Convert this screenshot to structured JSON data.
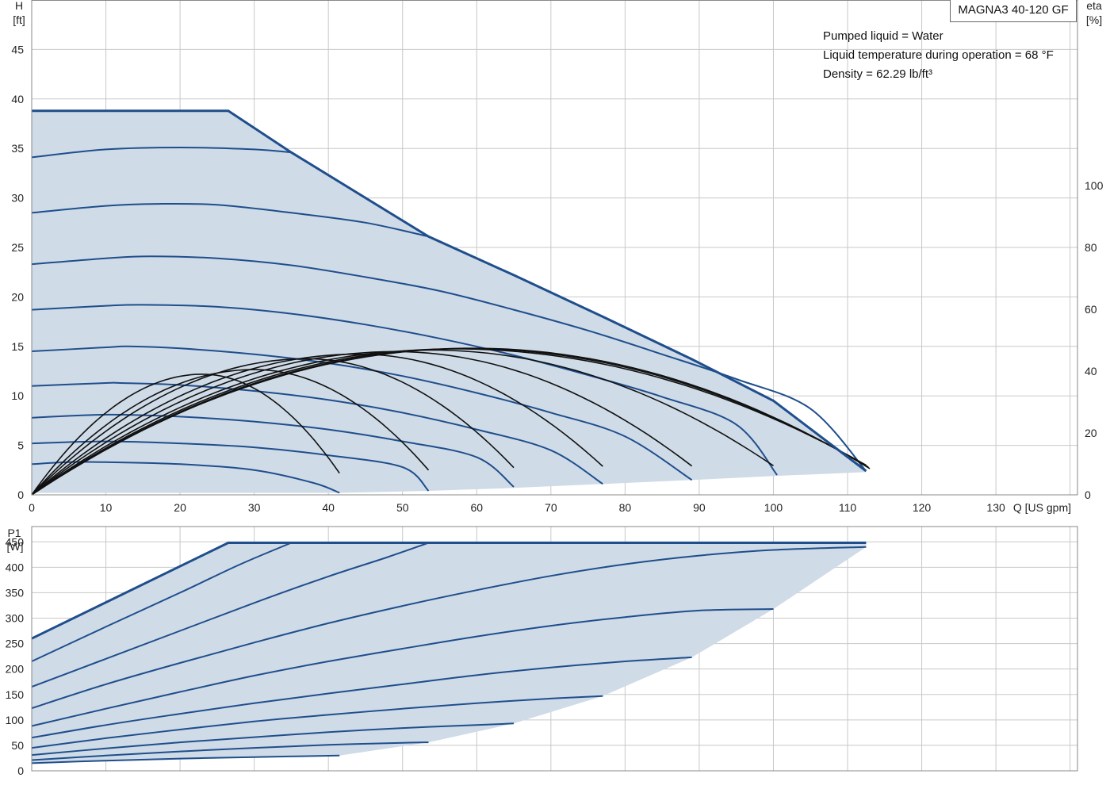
{
  "model": "MAGNA3 40-120 GF",
  "conditions": [
    "Pumped liquid = Water",
    "Liquid temperature during operation = 68 °F",
    "Density = 62.29 lb/ft³"
  ],
  "colors": {
    "curve": "#1f4e8c",
    "fill": "#cfdbe7",
    "efficiency": "#111111",
    "grid": "#c8c8c8"
  },
  "chart_data": [
    {
      "type": "line",
      "name": "head",
      "xlabel": "Q [US gpm]",
      "ylabel_top": "H",
      "ylabel_unit": "[ft]",
      "y2label_top": "eta",
      "y2label_unit": "[%]",
      "xlim": [
        0,
        141
      ],
      "ylim": [
        0,
        50
      ],
      "y2lim": [
        0,
        160
      ],
      "x_ticks": [
        0,
        10,
        20,
        30,
        40,
        50,
        60,
        70,
        80,
        90,
        100,
        110,
        120,
        130
      ],
      "y_ticks": [
        0,
        5,
        10,
        15,
        20,
        25,
        30,
        35,
        40,
        45
      ],
      "y2_ticks": [
        0,
        20,
        40,
        60,
        80,
        100
      ],
      "grid": true,
      "envelope": [
        [
          0,
          38.8
        ],
        [
          26.5,
          38.8
        ],
        [
          35,
          34.6
        ],
        [
          53.5,
          26.1
        ],
        [
          65,
          22.2
        ],
        [
          77,
          18.0
        ],
        [
          89,
          13.7
        ],
        [
          100,
          9.5
        ],
        [
          112.5,
          2.4
        ],
        [
          112.5,
          2.3
        ],
        [
          100,
          1.9
        ],
        [
          89,
          1.5
        ],
        [
          77,
          1.1
        ],
        [
          65,
          0.7
        ],
        [
          53.5,
          0.4
        ],
        [
          41.5,
          0.2
        ],
        [
          0,
          0.2
        ]
      ],
      "max_curve": [
        [
          0,
          38.8
        ],
        [
          26.5,
          38.8
        ],
        [
          35,
          34.6
        ],
        [
          53.5,
          26.1
        ],
        [
          65,
          22.2
        ],
        [
          77,
          18.0
        ],
        [
          89,
          13.7
        ],
        [
          100,
          9.5
        ],
        [
          112.5,
          2.4
        ]
      ],
      "speed_curves": [
        [
          [
            0,
            34.1
          ],
          [
            10,
            34.9
          ],
          [
            20,
            35.1
          ],
          [
            30,
            34.9
          ],
          [
            35,
            34.6
          ]
        ],
        [
          [
            0,
            28.5
          ],
          [
            10,
            29.2
          ],
          [
            17,
            29.4
          ],
          [
            25,
            29.3
          ],
          [
            35,
            28.5
          ],
          [
            45,
            27.5
          ],
          [
            53.5,
            26.1
          ]
        ],
        [
          [
            0,
            23.3
          ],
          [
            10,
            23.9
          ],
          [
            16,
            24.1
          ],
          [
            25,
            23.9
          ],
          [
            35,
            23.2
          ],
          [
            45,
            22.0
          ],
          [
            55,
            20.6
          ],
          [
            65,
            18.7
          ],
          [
            75,
            16.6
          ],
          [
            85,
            14.2
          ],
          [
            95,
            11.7
          ],
          [
            105,
            8.7
          ],
          [
            112.5,
            2.4
          ]
        ],
        [
          [
            0,
            18.7
          ],
          [
            10,
            19.1
          ],
          [
            15,
            19.2
          ],
          [
            25,
            19.0
          ],
          [
            35,
            18.3
          ],
          [
            45,
            17.2
          ],
          [
            55,
            15.8
          ],
          [
            65,
            14.1
          ],
          [
            75,
            12.1
          ],
          [
            85,
            9.9
          ],
          [
            95,
            7.1
          ],
          [
            100.5,
            2.0
          ]
        ],
        [
          [
            0,
            14.5
          ],
          [
            10,
            14.9
          ],
          [
            13,
            15.0
          ],
          [
            20,
            14.8
          ],
          [
            30,
            14.2
          ],
          [
            40,
            13.3
          ],
          [
            50,
            12.0
          ],
          [
            60,
            10.3
          ],
          [
            70,
            8.3
          ],
          [
            80,
            5.9
          ],
          [
            89,
            1.5
          ]
        ],
        [
          [
            0,
            11.0
          ],
          [
            10,
            11.3
          ],
          [
            12,
            11.3
          ],
          [
            20,
            11.1
          ],
          [
            30,
            10.5
          ],
          [
            40,
            9.6
          ],
          [
            50,
            8.3
          ],
          [
            60,
            6.6
          ],
          [
            70,
            4.5
          ],
          [
            77,
            1.1
          ]
        ],
        [
          [
            0,
            7.8
          ],
          [
            10,
            8.1
          ],
          [
            20,
            7.9
          ],
          [
            30,
            7.4
          ],
          [
            40,
            6.6
          ],
          [
            50,
            5.4
          ],
          [
            60,
            3.8
          ],
          [
            65,
            0.8
          ]
        ],
        [
          [
            0,
            5.2
          ],
          [
            10,
            5.4
          ],
          [
            20,
            5.2
          ],
          [
            30,
            4.8
          ],
          [
            40,
            4.0
          ],
          [
            50,
            2.8
          ],
          [
            53.5,
            0.4
          ]
        ],
        [
          [
            0,
            3.1
          ],
          [
            5,
            3.3
          ],
          [
            10,
            3.3
          ],
          [
            20,
            3.1
          ],
          [
            30,
            2.5
          ],
          [
            38,
            1.2
          ],
          [
            41.5,
            0.2
          ]
        ]
      ],
      "efficiency_curves": [
        {
          "peak": [
            23,
            39
          ],
          "end": [
            41.5,
            7
          ]
        },
        {
          "peak": [
            30,
            40.5
          ],
          "end": [
            53.5,
            8
          ]
        },
        {
          "peak": [
            37,
            44
          ],
          "end": [
            65,
            8.8
          ]
        },
        {
          "peak": [
            44,
            45.5
          ],
          "end": [
            77,
            9.2
          ]
        },
        {
          "peak": [
            49,
            46.3
          ],
          "end": [
            89,
            9.3
          ]
        },
        {
          "peak": [
            54,
            46.8
          ],
          "end": [
            100,
            9.4
          ]
        },
        {
          "peak": [
            57,
            47.2
          ],
          "end": [
            112.5,
            9.6
          ]
        },
        {
          "peak": [
            58.5,
            47.3
          ],
          "end": [
            112.8,
            9.0
          ]
        },
        {
          "peak": [
            59.5,
            47.4
          ],
          "end": [
            113,
            8.5
          ]
        }
      ]
    },
    {
      "type": "line",
      "name": "power",
      "ylabel_top": "P1",
      "ylabel_unit": "[W]",
      "xlim": [
        0,
        141
      ],
      "ylim": [
        0,
        480
      ],
      "y_ticks": [
        0,
        50,
        100,
        150,
        200,
        250,
        300,
        350,
        400,
        450
      ],
      "grid": true,
      "envelope": [
        [
          0,
          260
        ],
        [
          26.5,
          448
        ],
        [
          112.5,
          448
        ],
        [
          112.5,
          440
        ],
        [
          100,
          318
        ],
        [
          89,
          223
        ],
        [
          77,
          147
        ],
        [
          65,
          93
        ],
        [
          53.5,
          56
        ],
        [
          41.5,
          30
        ],
        [
          0,
          15
        ]
      ],
      "max_curve": [
        [
          0,
          260
        ],
        [
          26.5,
          448
        ],
        [
          112.5,
          448
        ]
      ],
      "speed_curves": [
        [
          [
            0,
            215
          ],
          [
            10,
            283
          ],
          [
            20,
            350
          ],
          [
            28,
            405
          ],
          [
            35,
            448
          ]
        ],
        [
          [
            0,
            165
          ],
          [
            10,
            220
          ],
          [
            20,
            275
          ],
          [
            30,
            330
          ],
          [
            40,
            382
          ],
          [
            48,
            420
          ],
          [
            53.5,
            448
          ]
        ],
        [
          [
            0,
            123
          ],
          [
            10,
            170
          ],
          [
            20,
            212
          ],
          [
            30,
            252
          ],
          [
            40,
            290
          ],
          [
            50,
            324
          ],
          [
            60,
            355
          ],
          [
            70,
            383
          ],
          [
            80,
            406
          ],
          [
            90,
            423
          ],
          [
            100,
            434
          ],
          [
            112.5,
            440
          ]
        ],
        [
          [
            0,
            88
          ],
          [
            10,
            122
          ],
          [
            20,
            155
          ],
          [
            30,
            187
          ],
          [
            40,
            215
          ],
          [
            50,
            240
          ],
          [
            60,
            264
          ],
          [
            70,
            285
          ],
          [
            80,
            302
          ],
          [
            90,
            315
          ],
          [
            100,
            318
          ]
        ],
        [
          [
            0,
            65
          ],
          [
            10,
            90
          ],
          [
            20,
            112
          ],
          [
            30,
            133
          ],
          [
            40,
            152
          ],
          [
            50,
            170
          ],
          [
            60,
            188
          ],
          [
            70,
            203
          ],
          [
            80,
            215
          ],
          [
            89,
            223
          ]
        ],
        [
          [
            0,
            45
          ],
          [
            10,
            64
          ],
          [
            20,
            81
          ],
          [
            30,
            97
          ],
          [
            40,
            110
          ],
          [
            50,
            122
          ],
          [
            60,
            133
          ],
          [
            70,
            142
          ],
          [
            77,
            147
          ]
        ],
        [
          [
            0,
            31
          ],
          [
            10,
            44
          ],
          [
            20,
            56
          ],
          [
            30,
            66
          ],
          [
            40,
            76
          ],
          [
            50,
            84
          ],
          [
            60,
            90
          ],
          [
            65,
            93
          ]
        ],
        [
          [
            0,
            21
          ],
          [
            10,
            30
          ],
          [
            20,
            38
          ],
          [
            30,
            45
          ],
          [
            40,
            51
          ],
          [
            50,
            55
          ],
          [
            53.5,
            56
          ]
        ],
        [
          [
            0,
            15
          ],
          [
            10,
            20
          ],
          [
            20,
            24
          ],
          [
            30,
            27
          ],
          [
            41.5,
            30
          ]
        ]
      ]
    }
  ]
}
